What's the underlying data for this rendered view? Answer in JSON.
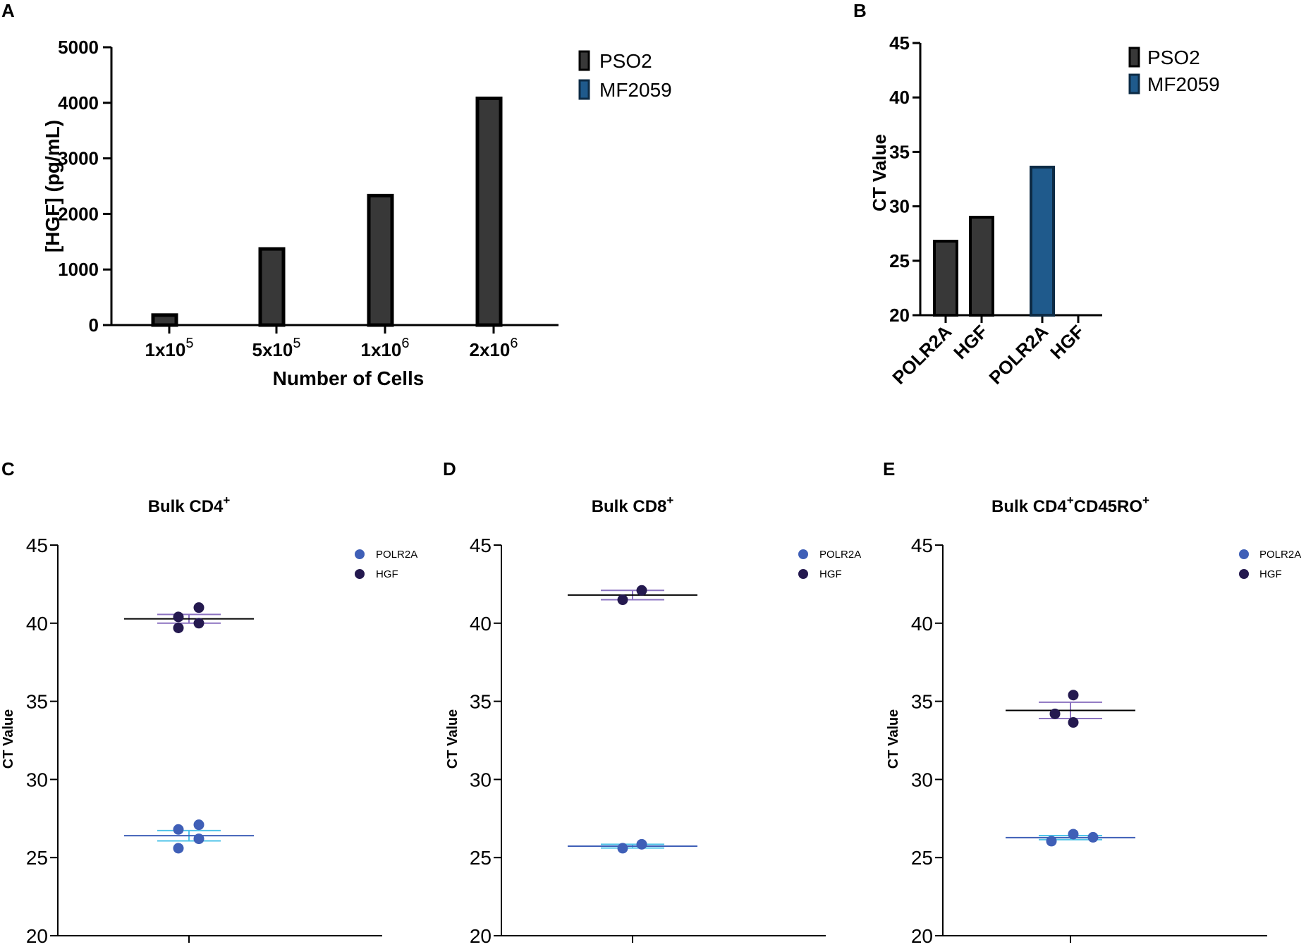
{
  "colors": {
    "pso2_fill": "#383838",
    "pso2_stroke": "#000000",
    "mf2059_fill": "#1f5a8c",
    "mf2059_stroke": "#0d2b45",
    "polr2a_dot": "#3f5fb7",
    "hgf_dot": "#24194f",
    "polr2a_err": "#4fc3e8",
    "polr2a_mean": "#3f5fb7",
    "hgf_err": "#8b72c0",
    "hgf_mean": "#000000"
  },
  "chart_data": [
    {
      "id": "A",
      "panel_label": "A",
      "type": "bar",
      "title": "",
      "ylabel": "[HGF] (pg/mL)",
      "xlabel": "Number of Cells",
      "ylim": [
        0,
        5000
      ],
      "yticks": [
        "0",
        "1000",
        "2000",
        "3000",
        "4000",
        "5000"
      ],
      "categories": [
        {
          "base": "1x10",
          "exp": "5"
        },
        {
          "base": "5x10",
          "exp": "5"
        },
        {
          "base": "1x10",
          "exp": "6"
        },
        {
          "base": "2x10",
          "exp": "6"
        }
      ],
      "series": [
        {
          "name": "PSO2",
          "values": [
            180,
            1370,
            2330,
            4080
          ]
        },
        {
          "name": "MF2059",
          "values": [
            0,
            0,
            0,
            0
          ]
        }
      ],
      "legend": [
        "PSO2",
        "MF2059"
      ],
      "legend_position": "top-right"
    },
    {
      "id": "B",
      "panel_label": "B",
      "type": "bar",
      "title": "",
      "ylabel": "CT Value",
      "xlabel": "",
      "ylim": [
        20,
        45
      ],
      "yticks": [
        "20",
        "25",
        "30",
        "35",
        "40",
        "45"
      ],
      "categories": [
        "POLR2A",
        "HGF",
        "POLR2A",
        "HGF"
      ],
      "bars": [
        {
          "category": "POLR2A",
          "series": "PSO2",
          "value": 26.8
        },
        {
          "category": "HGF",
          "series": "PSO2",
          "value": 29.0
        },
        {
          "category": "POLR2A",
          "series": "MF2059",
          "value": 33.6
        },
        {
          "category": "HGF",
          "series": "MF2059",
          "value": null
        }
      ],
      "legend": [
        "PSO2",
        "MF2059"
      ],
      "legend_position": "top-right"
    },
    {
      "id": "C",
      "panel_label": "C",
      "type": "scatter",
      "title": {
        "base": "Bulk CD4",
        "sup1": "+",
        "mid": "",
        "sup2": ""
      },
      "ylabel": "CT Value",
      "ylim": [
        20,
        45
      ],
      "yticks": [
        "20",
        "25",
        "30",
        "35",
        "40",
        "45"
      ],
      "legend": [
        "POLR2A",
        "HGF"
      ],
      "legend_position": "top-right",
      "series": [
        {
          "name": "POLR2A",
          "values": [
            26.8,
            27.1,
            25.6,
            26.2
          ],
          "mean": 26.4,
          "sem": 0.33
        },
        {
          "name": "HGF",
          "values": [
            40.4,
            41.0,
            39.7,
            40.0
          ],
          "mean": 40.28,
          "sem": 0.28
        }
      ]
    },
    {
      "id": "D",
      "panel_label": "D",
      "type": "scatter",
      "title": {
        "base": "Bulk CD8",
        "sup1": "+",
        "mid": "",
        "sup2": ""
      },
      "ylabel": "CT Value",
      "ylim": [
        20,
        45
      ],
      "yticks": [
        "20",
        "25",
        "30",
        "35",
        "40",
        "45"
      ],
      "legend": [
        "POLR2A",
        "HGF"
      ],
      "legend_position": "top-right",
      "series": [
        {
          "name": "POLR2A",
          "values": [
            25.6,
            25.85
          ],
          "mean": 25.73,
          "sem": 0.12
        },
        {
          "name": "HGF",
          "values": [
            41.5,
            42.1
          ],
          "mean": 41.8,
          "sem": 0.3
        }
      ]
    },
    {
      "id": "E",
      "panel_label": "E",
      "type": "scatter",
      "title": {
        "base": "Bulk CD4",
        "sup1": "+",
        "mid": "CD45RO",
        "sup2": "+"
      },
      "ylabel": "CT Value",
      "ylim": [
        20,
        45
      ],
      "yticks": [
        "20",
        "25",
        "30",
        "35",
        "40",
        "45"
      ],
      "legend": [
        "POLR2A",
        "HGF"
      ],
      "legend_position": "top-right",
      "series": [
        {
          "name": "POLR2A",
          "values": [
            26.05,
            26.5,
            26.3
          ],
          "mean": 26.28,
          "sem": 0.13
        },
        {
          "name": "HGF",
          "values": [
            34.2,
            35.4,
            33.65
          ],
          "mean": 34.42,
          "sem": 0.52
        }
      ]
    }
  ]
}
